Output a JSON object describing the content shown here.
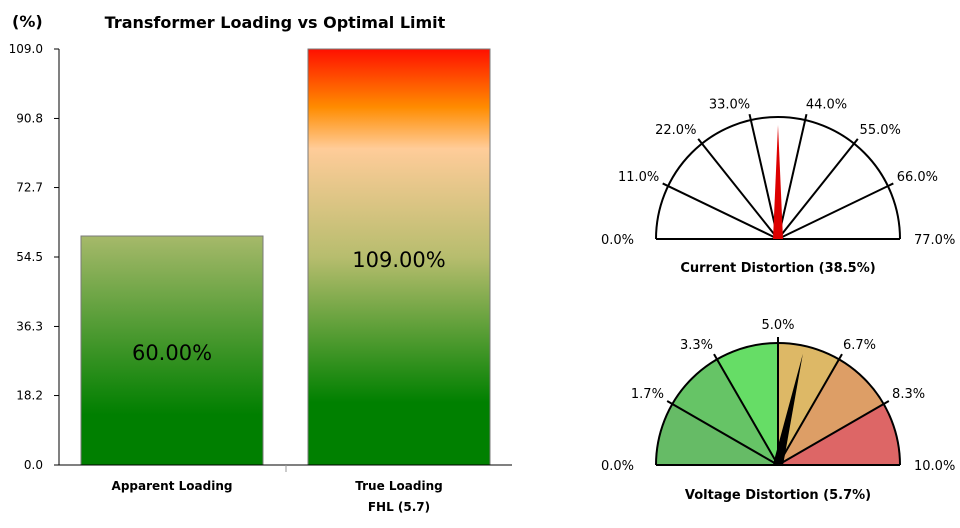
{
  "chart_data": [
    {
      "type": "bar",
      "title": "Transformer Loading vs Optimal Limit",
      "ylabel": "(%)",
      "ylim": [
        0,
        109
      ],
      "yticks": [
        "0.0",
        "18.2",
        "36.3",
        "54.5",
        "72.7",
        "90.8",
        "109.0"
      ],
      "categories": [
        "Apparent Loading",
        "True Loading"
      ],
      "category_sublabels": [
        "",
        "FHL (5.7)"
      ],
      "values": [
        60.0,
        109.0
      ],
      "value_labels": [
        "60.00%",
        "109.00%"
      ],
      "colors": {
        "apparent_top": "#a6b96a",
        "apparent_bottom": "#007f00",
        "true_top": "#ff1000",
        "true_orange": "#ff8c00",
        "true_peach": "#ffcc99",
        "true_bottom": "#008000"
      }
    },
    {
      "type": "gauge",
      "title": "Current Distortion (38.5%)",
      "range": [
        0,
        77
      ],
      "value": 38.5,
      "tick_labels": [
        "0.0%",
        "11.0%",
        "22.0%",
        "33.0%",
        "44.0%",
        "55.0%",
        "66.0%",
        "77.0%"
      ],
      "needle_color": "#dd0000"
    },
    {
      "type": "gauge",
      "title": "Voltage Distortion (5.7%)",
      "range": [
        0,
        10
      ],
      "value": 5.7,
      "tick_labels": [
        "0.0%",
        "1.7%",
        "3.3%",
        "5.0%",
        "6.7%",
        "8.3%",
        "10.0%"
      ],
      "band_colors": [
        "#66bb66",
        "#66c466",
        "#66dd66",
        "#ddb866",
        "#dd9e66",
        "#dd6666"
      ],
      "needle_color": "#000000"
    }
  ]
}
